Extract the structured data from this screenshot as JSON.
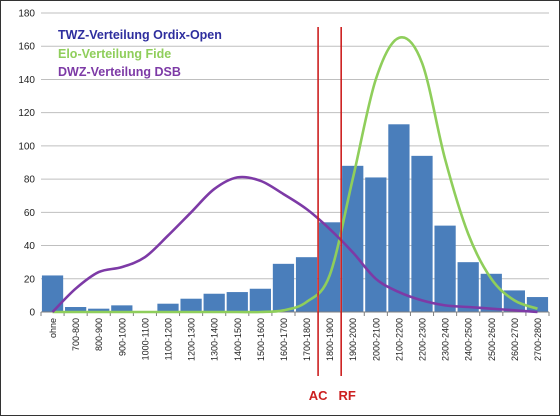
{
  "chart_data": {
    "type": "bar",
    "ylim": [
      0,
      180
    ],
    "yticks": [
      0,
      20,
      40,
      60,
      80,
      100,
      120,
      140,
      160,
      180
    ],
    "grid": "horizontal",
    "legend_placement": "top-left",
    "categories": [
      "ohne",
      "700-800",
      "800-900",
      "900-1000",
      "1000-1100",
      "1100-1200",
      "1200-1300",
      "1300-1400",
      "1400-1500",
      "1500-1600",
      "1600-1700",
      "1700-1800",
      "1800-1900",
      "1900-2000",
      "2000-2100",
      "2100-2200",
      "2200-2300",
      "2300-2400",
      "2400-2500",
      "2500-2600",
      "2600-2700",
      "2700-2800"
    ],
    "series": [
      {
        "name": "TWZ-Verteilung Ordix-Open",
        "kind": "bar",
        "color": "#4a7ebb",
        "legend_color": "#2e2e9e",
        "values": [
          22,
          3,
          2,
          4,
          0,
          5,
          8,
          11,
          12,
          14,
          29,
          33,
          54,
          88,
          81,
          113,
          94,
          52,
          30,
          23,
          13,
          9
        ]
      },
      {
        "name": "Elo-Verteilung Fide",
        "kind": "line",
        "color": "#8fce5b",
        "legend_color": "#8fce5b",
        "values": [
          0,
          0,
          0,
          0,
          0,
          0,
          0,
          0,
          0,
          0,
          1,
          6,
          22,
          80,
          140,
          165,
          150,
          92,
          47,
          20,
          7,
          2
        ]
      },
      {
        "name": "DWZ-Verteilung DSB",
        "kind": "line",
        "color": "#7d3aa6",
        "legend_color": "#7d3aa6",
        "values": [
          0,
          14,
          24,
          27,
          33,
          46,
          60,
          74,
          81,
          79,
          71,
          62,
          50,
          36,
          20,
          12,
          7,
          4,
          3,
          2,
          1,
          0
        ]
      }
    ],
    "reference_lines": [
      {
        "label": "AC",
        "x": 1800,
        "color": "#cc2020"
      },
      {
        "label": "RF",
        "x": 1900,
        "color": "#cc2020"
      }
    ]
  }
}
